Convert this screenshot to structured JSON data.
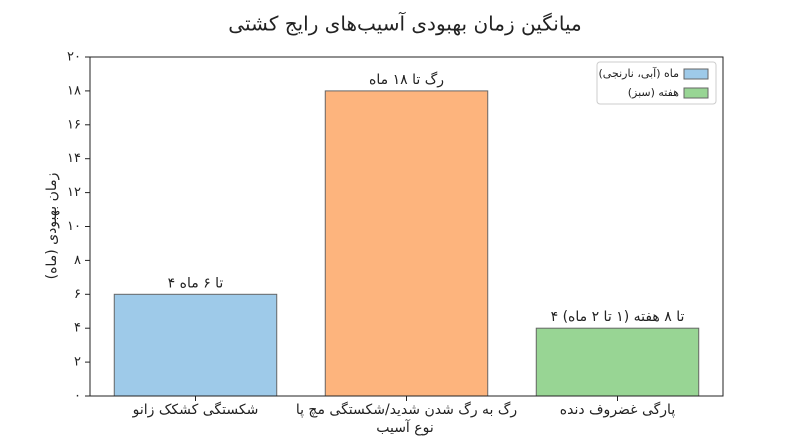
{
  "chart_data": {
    "type": "bar",
    "title": "میانگین زمان بهبودی آسیب‌های رایج کشتی",
    "x_label": "نوع آسیب",
    "y_label": "زمان بهبودی (ماه)",
    "categories": [
      "شکستگی کشکک زانو",
      "رگ به رگ شدن شدید/شکستگی مچ پا",
      "پارگی غضروف دنده"
    ],
    "values": [
      6,
      18,
      4
    ],
    "value_labels": [
      "۴ تا ۶ ماه",
      "رگ تا ۱۸ ماه",
      "۴ تا ۸ هفته (۱ تا ۲ ماه)"
    ],
    "colors": [
      "#9ecae9",
      "#fdb47d",
      "#98d594"
    ],
    "legend": [
      {
        "name": "ماه (آبی، نارنجی)",
        "color": "#9ecae9"
      },
      {
        "name": "هفته (سبز)",
        "color": "#98d594"
      }
    ],
    "legend_position": "upper right",
    "ylim": [
      0,
      20
    ],
    "yticks": [
      {
        "value": 0,
        "label": "۰"
      },
      {
        "value": 2,
        "label": "۲"
      },
      {
        "value": 4,
        "label": "۴"
      },
      {
        "value": 6,
        "label": "۶"
      },
      {
        "value": 8,
        "label": "۸"
      },
      {
        "value": 10,
        "label": "۱۰"
      },
      {
        "value": 12,
        "label": "۱۲"
      },
      {
        "value": 14,
        "label": "۱۴"
      },
      {
        "value": 16,
        "label": "۱۶"
      },
      {
        "value": 18,
        "label": "۱۸"
      },
      {
        "value": 20,
        "label": "۲۰"
      }
    ]
  }
}
